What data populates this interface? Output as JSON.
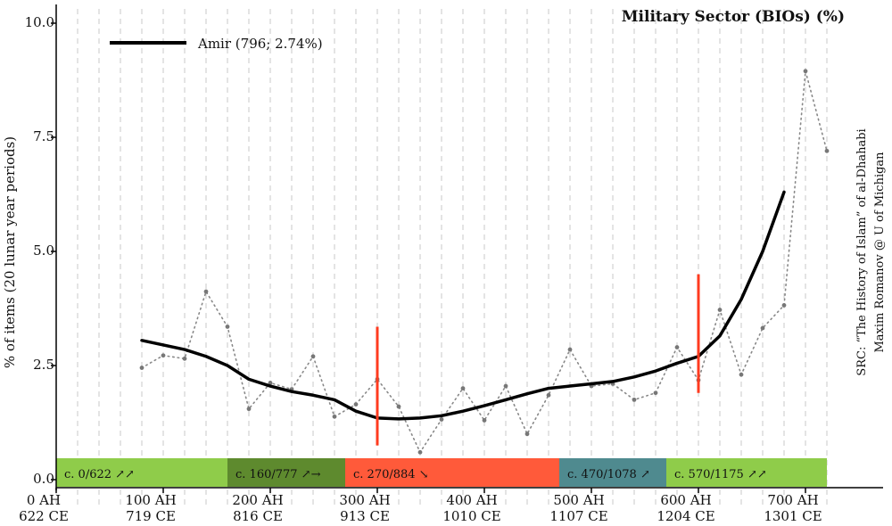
{
  "chart_data": {
    "type": "line",
    "title": "Military Sector (BIOs) (%)",
    "ylabel": "% of items (20 lunar year periods)",
    "ylim": [
      0,
      10
    ],
    "yticks": [
      "0.0",
      "2.5",
      "5.0",
      "7.5",
      "10.0"
    ],
    "ytick_values": [
      0,
      2.5,
      5,
      7.5,
      10
    ],
    "xlim": [
      0,
      735
    ],
    "xticks": [
      {
        "value": 0,
        "ah": "0 AH",
        "ce": "622 CE"
      },
      {
        "value": 100,
        "ah": "100 AH",
        "ce": "719 CE"
      },
      {
        "value": 200,
        "ah": "200 AH",
        "ce": "816 CE"
      },
      {
        "value": 300,
        "ah": "300 AH",
        "ce": "913 CE"
      },
      {
        "value": 400,
        "ah": "400 AH",
        "ce": "1010 CE"
      },
      {
        "value": 500,
        "ah": "500 AH",
        "ce": "1107 CE"
      },
      {
        "value": 600,
        "ah": "600 AH",
        "ce": "1204 CE"
      },
      {
        "value": 700,
        "ah": "700 AH",
        "ce": "1301 CE"
      }
    ],
    "grid": "vertical dashed every 20 AH",
    "series": [
      {
        "name": "Amir (796; 2.74%)",
        "style": "solid",
        "color": "#000000",
        "x": [
          80,
          100,
          120,
          140,
          160,
          180,
          200,
          220,
          240,
          260,
          280,
          300,
          320,
          340,
          360,
          380,
          400,
          420,
          440,
          460,
          480,
          500,
          520,
          540,
          560,
          580,
          600,
          620,
          640,
          660,
          680
        ],
        "y": [
          3.05,
          2.95,
          2.85,
          2.7,
          2.5,
          2.2,
          2.05,
          1.93,
          1.85,
          1.75,
          1.5,
          1.35,
          1.33,
          1.35,
          1.4,
          1.5,
          1.62,
          1.75,
          1.88,
          2.0,
          2.05,
          2.1,
          2.15,
          2.25,
          2.38,
          2.55,
          2.7,
          3.15,
          3.95,
          5.0,
          6.3
        ]
      },
      {
        "name": "",
        "style": "dotted",
        "color": "#888888",
        "x": [
          80,
          100,
          120,
          140,
          160,
          180,
          200,
          220,
          240,
          260,
          280,
          300,
          320,
          340,
          360,
          380,
          400,
          420,
          440,
          460,
          480,
          500,
          520,
          540,
          560,
          580,
          600,
          620,
          640,
          660,
          680,
          700,
          720
        ],
        "y": [
          2.45,
          2.72,
          2.65,
          4.12,
          3.35,
          1.55,
          2.12,
          1.98,
          2.7,
          1.38,
          1.65,
          2.2,
          1.6,
          0.6,
          1.32,
          2.0,
          1.3,
          2.05,
          1.0,
          1.85,
          2.85,
          2.05,
          2.1,
          1.75,
          1.9,
          2.9,
          2.18,
          3.72,
          2.3,
          3.32,
          3.82,
          8.95,
          7.2
        ]
      }
    ],
    "vertical_markers": [
      {
        "x": 300,
        "y_from": 0.75,
        "y_to": 3.35,
        "color": "#ff3b1f"
      },
      {
        "x": 600,
        "y_from": 1.9,
        "y_to": 4.5,
        "color": "#ff3b1f"
      }
    ],
    "periods": [
      {
        "label": "c. 0/622 ↗↗",
        "x_from": 0,
        "x_to": 160,
        "color": "#8fcc4a"
      },
      {
        "label": "c. 160/777 ↗→",
        "x_from": 160,
        "x_to": 270,
        "color": "#5e8a2e"
      },
      {
        "label": "c. 270/884 ↘",
        "x_from": 270,
        "x_to": 470,
        "color": "#ff5a3a"
      },
      {
        "label": "c. 470/1078 ↗",
        "x_from": 470,
        "x_to": 570,
        "color": "#4f8a8f"
      },
      {
        "label": "c. 570/1175 ↗↗",
        "x_from": 570,
        "x_to": 720,
        "color": "#8fcc4a"
      }
    ],
    "source": [
      "SRC: “The History of Islam” of al-Dhahabi",
      "Maxim Romanov @ U of Michigan"
    ],
    "legend_position": "top-left"
  }
}
